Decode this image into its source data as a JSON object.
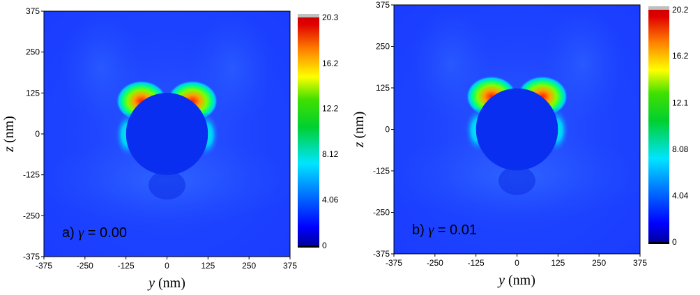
{
  "chart_data": [
    {
      "type": "heatmap",
      "panel_label": "a)",
      "gamma_symbol": "γ",
      "gamma_text": " = 0.00",
      "xlabel_var": "y",
      "xlabel_unit": " (nm)",
      "ylabel_var": "z",
      "ylabel_unit": " (nm)",
      "xlim": [
        -375,
        375
      ],
      "ylim": [
        -375,
        375
      ],
      "x_ticks": [
        "-375",
        "-250",
        "-125",
        "0",
        "125",
        "250",
        "375"
      ],
      "y_ticks": [
        "375",
        "250",
        "125",
        "0",
        "-125",
        "-250",
        "-375"
      ],
      "sphere_radius_nm": 125,
      "colorbar": {
        "min": 0,
        "max": 20.3,
        "tick_labels": [
          "20.3",
          "16.2",
          "12.2",
          "8.12",
          "4.06",
          "0"
        ],
        "tick_values": [
          20.3,
          16.2,
          12.2,
          8.12,
          4.06,
          0
        ]
      }
    },
    {
      "type": "heatmap",
      "panel_label": "b)",
      "gamma_symbol": "γ",
      "gamma_text": " = 0.01",
      "xlabel_var": "y",
      "xlabel_unit": " (nm)",
      "ylabel_var": "z",
      "ylabel_unit": " (nm)",
      "xlim": [
        -375,
        375
      ],
      "ylim": [
        -375,
        375
      ],
      "x_ticks": [
        "-375",
        "-250",
        "-125",
        "0",
        "125",
        "250",
        "375"
      ],
      "y_ticks": [
        "375",
        "250",
        "125",
        "0",
        "-125",
        "-250",
        "-375"
      ],
      "sphere_radius_nm": 125,
      "colorbar": {
        "min": 0,
        "max": 20.2,
        "tick_labels": [
          "20.2",
          "16.2",
          "12.1",
          "8.08",
          "4.04",
          "0"
        ],
        "tick_values": [
          20.2,
          16.2,
          12.1,
          8.08,
          4.04,
          0
        ]
      }
    }
  ],
  "colors": {
    "background_field": "#1a3cff",
    "sphere": "#0a2ef0",
    "low": "#0000b0",
    "cyan": "#00e5ff",
    "green": "#00d000",
    "yellow": "#ffff00",
    "orange": "#ff8000",
    "red": "#e00000",
    "max_cap": "#c0c0c0"
  }
}
